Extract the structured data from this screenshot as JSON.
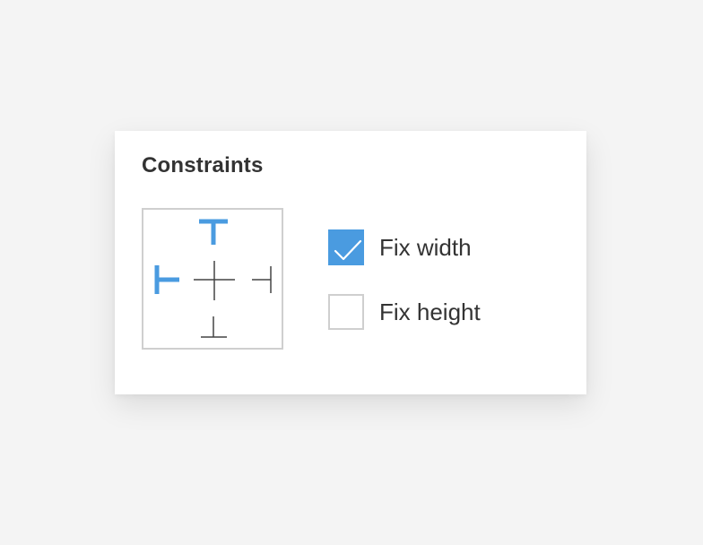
{
  "panel": {
    "title": "Constraints"
  },
  "constraints_widget": {
    "pins": {
      "top": {
        "active": true,
        "icon": "top-pin-icon"
      },
      "left": {
        "active": true,
        "icon": "left-pin-icon"
      },
      "right": {
        "active": false,
        "icon": "right-pin-icon"
      },
      "bottom": {
        "active": false,
        "icon": "bottom-pin-icon"
      },
      "center": {
        "active": false,
        "icon": "center-crosshair-icon"
      }
    }
  },
  "options": [
    {
      "label": "Fix width",
      "checked": true
    },
    {
      "label": "Fix height",
      "checked": false
    }
  ],
  "colors": {
    "accent": "#4a9be0",
    "inactive_line": "#444444",
    "border": "#cfcfcf",
    "text": "#333333",
    "background": "#f4f4f4",
    "panel": "#ffffff"
  }
}
